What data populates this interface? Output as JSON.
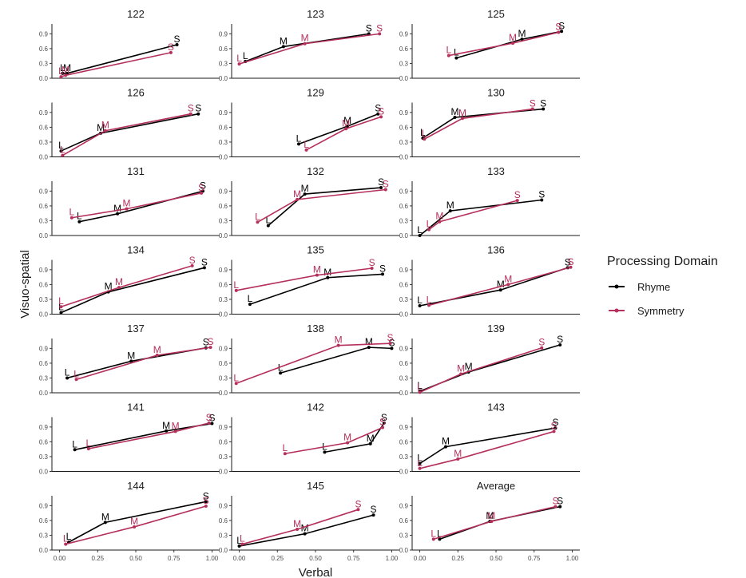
{
  "chart_data": {
    "type": "line",
    "xlabel": "Verbal",
    "ylabel": "Visuo-spatial",
    "xlim": [
      -0.05,
      1.05
    ],
    "ylim": [
      0,
      1.1
    ],
    "x_ticks": [
      "0.00",
      "0.25",
      "0.50",
      "0.75",
      "1.00"
    ],
    "y_ticks": [
      "0.0",
      "0.3",
      "0.6",
      "0.9"
    ],
    "point_labels": [
      "L",
      "M",
      "S"
    ],
    "legend": {
      "title": "Processing Domain",
      "entries": [
        {
          "name": "Rhyme",
          "color": "#000000"
        },
        {
          "name": "Symmetry",
          "color": "#b5305a"
        }
      ]
    },
    "panels": [
      {
        "title": "122",
        "series": [
          {
            "name": "Rhyme",
            "points": [
              [
                0.02,
                0.1
              ],
              [
                0.05,
                0.1
              ],
              [
                0.77,
                0.68
              ]
            ]
          },
          {
            "name": "Symmetry",
            "points": [
              [
                0.01,
                0.03
              ],
              [
                0.04,
                0.06
              ],
              [
                0.73,
                0.52
              ]
            ]
          }
        ]
      },
      {
        "title": "123",
        "series": [
          {
            "name": "Rhyme",
            "points": [
              [
                0.04,
                0.34
              ],
              [
                0.29,
                0.64
              ],
              [
                0.85,
                0.9
              ]
            ]
          },
          {
            "name": "Symmetry",
            "points": [
              [
                0.0,
                0.29
              ],
              [
                0.43,
                0.7
              ],
              [
                0.92,
                0.9
              ]
            ]
          }
        ]
      },
      {
        "title": "125",
        "series": [
          {
            "name": "Rhyme",
            "points": [
              [
                0.24,
                0.41
              ],
              [
                0.67,
                0.79
              ],
              [
                0.93,
                0.95
              ]
            ]
          },
          {
            "name": "Symmetry",
            "points": [
              [
                0.19,
                0.46
              ],
              [
                0.61,
                0.71
              ],
              [
                0.91,
                0.93
              ]
            ]
          }
        ]
      },
      {
        "title": "126",
        "series": [
          {
            "name": "Rhyme",
            "points": [
              [
                0.01,
                0.12
              ],
              [
                0.27,
                0.48
              ],
              [
                0.91,
                0.87
              ]
            ]
          },
          {
            "name": "Symmetry",
            "points": [
              [
                0.02,
                0.03
              ],
              [
                0.3,
                0.53
              ],
              [
                0.86,
                0.87
              ]
            ]
          }
        ]
      },
      {
        "title": "129",
        "series": [
          {
            "name": "Rhyme",
            "points": [
              [
                0.39,
                0.26
              ],
              [
                0.71,
                0.62
              ],
              [
                0.91,
                0.87
              ]
            ]
          },
          {
            "name": "Symmetry",
            "points": [
              [
                0.44,
                0.14
              ],
              [
                0.7,
                0.57
              ],
              [
                0.93,
                0.81
              ]
            ]
          }
        ]
      },
      {
        "title": "130",
        "series": [
          {
            "name": "Rhyme",
            "points": [
              [
                0.02,
                0.38
              ],
              [
                0.23,
                0.8
              ],
              [
                0.81,
                0.97
              ]
            ]
          },
          {
            "name": "Symmetry",
            "points": [
              [
                0.03,
                0.36
              ],
              [
                0.28,
                0.78
              ],
              [
                0.74,
                0.97
              ]
            ]
          }
        ]
      },
      {
        "title": "131",
        "series": [
          {
            "name": "Rhyme",
            "points": [
              [
                0.13,
                0.28
              ],
              [
                0.38,
                0.44
              ],
              [
                0.94,
                0.9
              ]
            ]
          },
          {
            "name": "Symmetry",
            "points": [
              [
                0.08,
                0.36
              ],
              [
                0.44,
                0.54
              ],
              [
                0.93,
                0.86
              ]
            ]
          }
        ]
      },
      {
        "title": "132",
        "series": [
          {
            "name": "Rhyme",
            "points": [
              [
                0.19,
                0.2
              ],
              [
                0.43,
                0.84
              ],
              [
                0.93,
                0.97
              ]
            ]
          },
          {
            "name": "Symmetry",
            "points": [
              [
                0.12,
                0.27
              ],
              [
                0.38,
                0.73
              ],
              [
                0.96,
                0.93
              ]
            ]
          }
        ]
      },
      {
        "title": "133",
        "series": [
          {
            "name": "Rhyme",
            "points": [
              [
                0.0,
                0.0
              ],
              [
                0.2,
                0.5
              ],
              [
                0.8,
                0.72
              ]
            ]
          },
          {
            "name": "Symmetry",
            "points": [
              [
                0.06,
                0.12
              ],
              [
                0.13,
                0.28
              ],
              [
                0.64,
                0.71
              ]
            ]
          }
        ]
      },
      {
        "title": "134",
        "series": [
          {
            "name": "Rhyme",
            "points": [
              [
                0.01,
                0.03
              ],
              [
                0.32,
                0.45
              ],
              [
                0.95,
                0.94
              ]
            ]
          },
          {
            "name": "Symmetry",
            "points": [
              [
                0.01,
                0.15
              ],
              [
                0.39,
                0.54
              ],
              [
                0.87,
                0.98
              ]
            ]
          }
        ]
      },
      {
        "title": "135",
        "series": [
          {
            "name": "Rhyme",
            "points": [
              [
                0.07,
                0.2
              ],
              [
                0.58,
                0.74
              ],
              [
                0.94,
                0.81
              ]
            ]
          },
          {
            "name": "Symmetry",
            "points": [
              [
                -0.02,
                0.48
              ],
              [
                0.51,
                0.79
              ],
              [
                0.87,
                0.93
              ]
            ]
          }
        ]
      },
      {
        "title": "136",
        "series": [
          {
            "name": "Rhyme",
            "points": [
              [
                0.0,
                0.17
              ],
              [
                0.53,
                0.49
              ],
              [
                0.97,
                0.94
              ]
            ]
          },
          {
            "name": "Symmetry",
            "points": [
              [
                0.06,
                0.18
              ],
              [
                0.58,
                0.6
              ],
              [
                0.99,
                0.95
              ]
            ]
          }
        ]
      },
      {
        "title": "137",
        "series": [
          {
            "name": "Rhyme",
            "points": [
              [
                0.05,
                0.3
              ],
              [
                0.47,
                0.64
              ],
              [
                0.96,
                0.91
              ]
            ]
          },
          {
            "name": "Symmetry",
            "points": [
              [
                0.11,
                0.27
              ],
              [
                0.64,
                0.76
              ],
              [
                0.99,
                0.92
              ]
            ]
          }
        ]
      },
      {
        "title": "138",
        "series": [
          {
            "name": "Rhyme",
            "points": [
              [
                0.27,
                0.4
              ],
              [
                0.85,
                0.92
              ],
              [
                1.0,
                0.9
              ]
            ]
          },
          {
            "name": "Symmetry",
            "points": [
              [
                -0.02,
                0.19
              ],
              [
                0.65,
                0.96
              ],
              [
                0.99,
                1.0
              ]
            ]
          }
        ]
      },
      {
        "title": "139",
        "series": [
          {
            "name": "Rhyme",
            "points": [
              [
                0.0,
                0.03
              ],
              [
                0.32,
                0.42
              ],
              [
                0.92,
                0.97
              ]
            ]
          },
          {
            "name": "Symmetry",
            "points": [
              [
                0.0,
                0.01
              ],
              [
                0.27,
                0.38
              ],
              [
                0.8,
                0.91
              ]
            ]
          }
        ]
      },
      {
        "title": "141",
        "series": [
          {
            "name": "Rhyme",
            "points": [
              [
                0.1,
                0.44
              ],
              [
                0.7,
                0.82
              ],
              [
                1.0,
                0.97
              ]
            ]
          },
          {
            "name": "Symmetry",
            "points": [
              [
                0.19,
                0.46
              ],
              [
                0.76,
                0.81
              ],
              [
                0.98,
                0.98
              ]
            ]
          }
        ]
      },
      {
        "title": "142",
        "series": [
          {
            "name": "Rhyme",
            "points": [
              [
                0.56,
                0.39
              ],
              [
                0.86,
                0.56
              ],
              [
                0.95,
                0.98
              ]
            ]
          },
          {
            "name": "Symmetry",
            "points": [
              [
                0.3,
                0.36
              ],
              [
                0.71,
                0.58
              ],
              [
                0.94,
                0.89
              ]
            ]
          }
        ]
      },
      {
        "title": "143",
        "series": [
          {
            "name": "Rhyme",
            "points": [
              [
                0.0,
                0.16
              ],
              [
                0.17,
                0.5
              ],
              [
                0.89,
                0.88
              ]
            ]
          },
          {
            "name": "Symmetry",
            "points": [
              [
                0.0,
                0.06
              ],
              [
                0.25,
                0.25
              ],
              [
                0.88,
                0.81
              ]
            ]
          }
        ]
      },
      {
        "title": "144",
        "series": [
          {
            "name": "Rhyme",
            "points": [
              [
                0.06,
                0.16
              ],
              [
                0.3,
                0.56
              ],
              [
                0.96,
                0.98
              ]
            ]
          },
          {
            "name": "Symmetry",
            "points": [
              [
                0.04,
                0.12
              ],
              [
                0.49,
                0.47
              ],
              [
                0.96,
                0.89
              ]
            ]
          }
        ]
      },
      {
        "title": "145",
        "series": [
          {
            "name": "Rhyme",
            "points": [
              [
                0.0,
                0.08
              ],
              [
                0.43,
                0.33
              ],
              [
                0.88,
                0.71
              ]
            ]
          },
          {
            "name": "Symmetry",
            "points": [
              [
                0.02,
                0.12
              ],
              [
                0.38,
                0.42
              ],
              [
                0.78,
                0.82
              ]
            ]
          }
        ]
      },
      {
        "title": "Average",
        "series": [
          {
            "name": "Rhyme",
            "points": [
              [
                0.13,
                0.22
              ],
              [
                0.46,
                0.58
              ],
              [
                0.92,
                0.88
              ]
            ]
          },
          {
            "name": "Symmetry",
            "points": [
              [
                0.09,
                0.22
              ],
              [
                0.47,
                0.58
              ],
              [
                0.89,
                0.88
              ]
            ]
          }
        ]
      }
    ]
  }
}
